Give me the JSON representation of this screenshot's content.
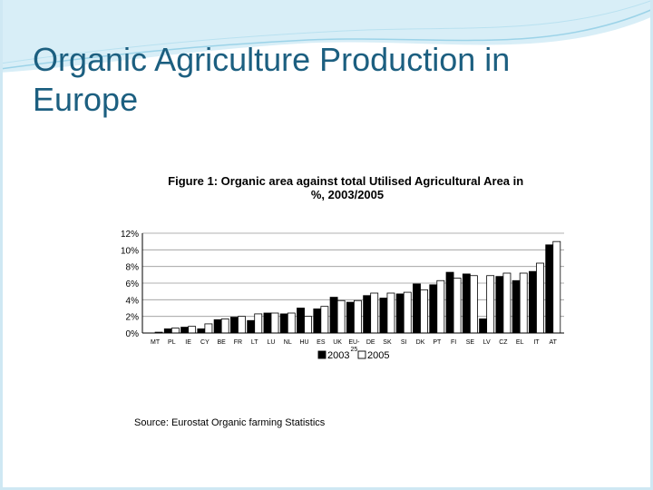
{
  "slide": {
    "title": "Organic Agriculture Production in Europe",
    "source": "Source: Eurostat Organic farming Statistics"
  },
  "colors": {
    "title": "#1c5f80",
    "decor_light": "#d8eef7",
    "decor_line": "#9cd3e8",
    "bar_2003": "#000000",
    "bar_2005": "#ffffff"
  },
  "chart_data": {
    "type": "bar",
    "title": "Figure 1: Organic area against total Utilised Agricultural Area in %, 2003/2005",
    "xlabel": "",
    "ylabel": "",
    "ylim": [
      0,
      12
    ],
    "y_ticks": [
      "0%",
      "2%",
      "4%",
      "6%",
      "8%",
      "10%",
      "12%"
    ],
    "grid": true,
    "legend_position": "bottom-center",
    "categories": [
      "MT",
      "PL",
      "IE",
      "CY",
      "BE",
      "FR",
      "LT",
      "LU",
      "NL",
      "HU",
      "ES",
      "UK",
      "EU-25",
      "DE",
      "SK",
      "SI",
      "DK",
      "PT",
      "FI",
      "SE",
      "LV",
      "CZ",
      "EL",
      "IT",
      "AT"
    ],
    "series": [
      {
        "name": "2003",
        "color": "#000000",
        "values": [
          0,
          0.5,
          0.7,
          0.5,
          1.6,
          1.9,
          1.5,
          2.4,
          2.3,
          3.0,
          2.9,
          4.3,
          3.7,
          4.5,
          4.2,
          4.7,
          5.9,
          5.8,
          7.3,
          7.1,
          1.7,
          6.8,
          6.3,
          7.4,
          10.6
        ]
      },
      {
        "name": "2005",
        "color": "#ffffff",
        "values": [
          0.1,
          0.6,
          0.8,
          1.1,
          1.7,
          2.0,
          2.3,
          2.4,
          2.4,
          2.0,
          3.2,
          3.9,
          3.9,
          4.8,
          4.8,
          4.9,
          5.2,
          6.3,
          6.6,
          6.9,
          6.9,
          7.2,
          7.2,
          8.4,
          11.0
        ]
      }
    ]
  }
}
